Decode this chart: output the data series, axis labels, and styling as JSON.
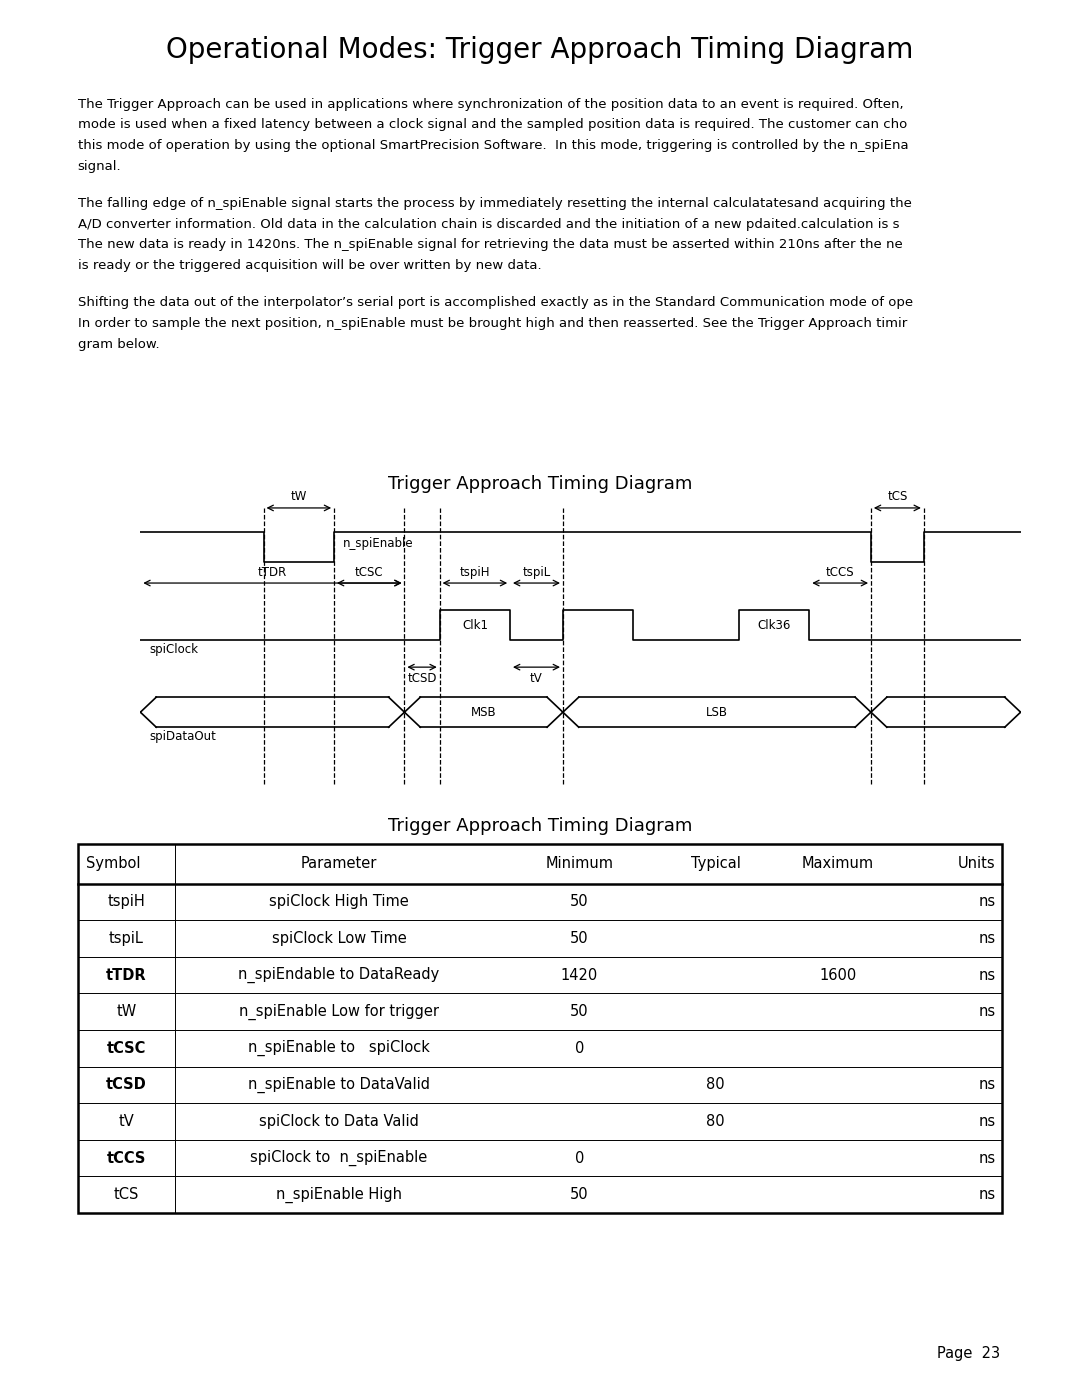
{
  "title": "Operational Modes: Trigger Approach Timing Diagram",
  "title_fontsize": 20,
  "body_paragraphs": [
    "The Trigger Approach can be used in applications where synchronization of the position data to an event is required. Often,\nmode is used when a fixed latency between a clock signal and the sampled position data is required. The customer can cho\nthis mode of operation by using the optional SmartPrecision Software.  In this mode, triggering is controlled by the n_spiEna\nsignal.",
    "The falling edge of n_spiEnable signal starts the process by immediately resetting the internal calculatatesand acquiring the\nA/D converter information. Old data in the calculation chain is discarded and the initiation of a new pdaited.calculation is s\nThe new data is ready in 1420ns. The n_spiEnable signal for retrieving the data must be asserted within 210ns after the ne\nis ready or the triggered acquisition will be over written by new data.",
    "Shifting the data out of the interpolator’s serial port is accomplished exactly as in the Standard Communication mode of ope\nIn order to sample the next position, n_spiEnable must be brought high and then reasserted. See the Trigger Approach timir\ngram below."
  ],
  "diagram_title": "Trigger Approach Timing Diagram",
  "table_title": "Trigger Approach Timing Diagram",
  "table_headers": [
    "Symbol",
    "Parameter",
    "Minimum",
    "Typical",
    "Maximum",
    "Units"
  ],
  "table_rows": [
    [
      "tspiH",
      "spiClock High Time",
      "50",
      "",
      "",
      "ns"
    ],
    [
      "tspiL",
      "spiClock Low Time",
      "50",
      "",
      "",
      "ns"
    ],
    [
      "tTDR",
      "n_spiEndable to DataReady",
      "1420",
      "",
      "1600",
      "ns"
    ],
    [
      "tW",
      "n_spiEnable Low for trigger",
      "50",
      "",
      "",
      "ns"
    ],
    [
      "tCSC",
      "n_spiEnable to   spiClock",
      "0",
      "",
      "",
      ""
    ],
    [
      "tCSD",
      "n_spiEnable to DataValid",
      "",
      "80",
      "",
      "ns"
    ],
    [
      "tV",
      "spiClock to Data Valid",
      "",
      "80",
      "",
      "ns"
    ],
    [
      "tCCS",
      "spiClock to  n_spiEnable",
      "0",
      "",
      "",
      "ns"
    ],
    [
      "tCS",
      "n_spiEnable High",
      "50",
      "",
      "",
      "ns"
    ]
  ],
  "page_number": "Page  23",
  "background_color": "#ffffff",
  "text_color": "#000000",
  "body_fontsize": 9.5,
  "table_fontsize": 10.5
}
